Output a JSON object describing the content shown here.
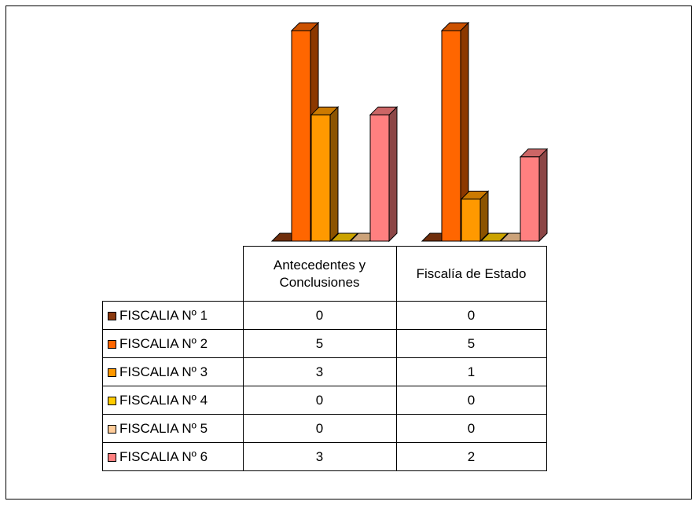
{
  "chart_data": {
    "type": "bar",
    "categories": [
      "Antecedentes y Conclusiones",
      "Fiscalía de Estado"
    ],
    "category_lines": [
      [
        "Antecedentes y",
        "Conclusiones"
      ],
      [
        "Fiscalía de Estado"
      ]
    ],
    "series": [
      {
        "name": "FISCALIA Nº 1",
        "color": "#8B3A0F",
        "values": [
          0,
          0
        ]
      },
      {
        "name": "FISCALIA Nº 2",
        "color": "#FF6600",
        "values": [
          5,
          5
        ]
      },
      {
        "name": "FISCALIA Nº 3",
        "color": "#FF9900",
        "values": [
          3,
          1
        ]
      },
      {
        "name": "FISCALIA Nº 4",
        "color": "#FFCC00",
        "values": [
          0,
          0
        ]
      },
      {
        "name": "FISCALIA Nº 5",
        "color": "#FFCC99",
        "values": [
          0,
          0
        ]
      },
      {
        "name": "FISCALIA Nº 6",
        "color": "#FF8080",
        "values": [
          3,
          2
        ]
      }
    ],
    "ylim": [
      0,
      5
    ],
    "grid": false,
    "legend": "data-table",
    "title": "",
    "xlabel": "",
    "ylabel": ""
  }
}
